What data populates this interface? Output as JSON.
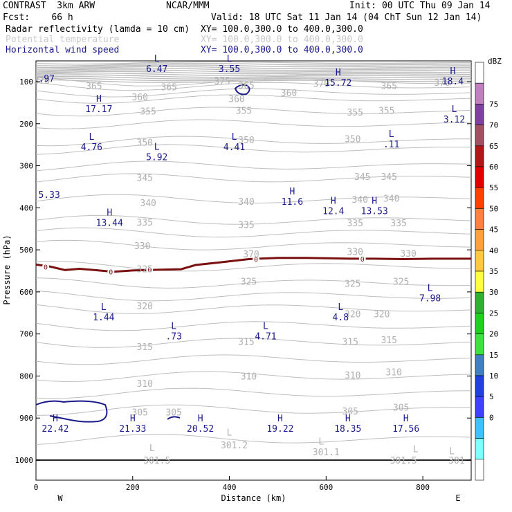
{
  "header": {
    "model": "CONTRAST  3km ARW",
    "org": "NCAR/MMM",
    "init": "Init: 00 UTC Thu 09 Jan 14",
    "fcst": "Fcst:    66 h",
    "valid": "Valid: 18 UTC Sat 11 Jan 14 (04 ChT Sun 12 Jan 14)",
    "field1": "Radar reflectivity (lamda = 10 cm)",
    "field1_xy": "XY= 100.0,300.0 to 400.0,300.0",
    "field2": "Potential temperature",
    "field2_xy": "XY= 100.0,300.0 to 400.0,300.0",
    "field3": "Horizontal wind speed",
    "field3_xy": "XY= 100.0,300.0 to 400.0,300.0"
  },
  "chart_data": {
    "type": "cross-section",
    "xlabel": "Distance (km)",
    "ylabel": "Pressure (hPa)",
    "xlim": [
      0,
      900
    ],
    "ylim": [
      1045,
      50
    ],
    "x_ticks": [
      0,
      200,
      400,
      600,
      800
    ],
    "y_ticks": [
      100,
      200,
      300,
      400,
      500,
      600,
      700,
      800,
      900,
      1000
    ],
    "west_label": "W",
    "east_label": "E",
    "colorbar": {
      "unit": "dBZ",
      "levels": [
        "75",
        "70",
        "65",
        "60",
        "55",
        "50",
        "45",
        "40",
        "35",
        "30",
        "25",
        "20",
        "15",
        "10",
        "5",
        "0"
      ],
      "colors": [
        "#ffffff",
        "#c080c0",
        "#8040a0",
        "#a05060",
        "#b01818",
        "#e00000",
        "#ff4000",
        "#ff8040",
        "#ffa040",
        "#ffc840",
        "#ffff40",
        "#30b030",
        "#20d020",
        "#40e040",
        "#4080c0",
        "#2040e0",
        "#4040ff",
        "#40c0ff",
        "#80ffff",
        "#ffffff"
      ]
    },
    "theta_labels": [
      {
        "v": "370",
        "x": 12,
        "p": 97
      },
      {
        "v": "365",
        "x": 120,
        "p": 110
      },
      {
        "v": "365",
        "x": 275,
        "p": 112
      },
      {
        "v": "375",
        "x": 385,
        "p": 98
      },
      {
        "v": "365",
        "x": 435,
        "p": 108
      },
      {
        "v": "370",
        "x": 590,
        "p": 104
      },
      {
        "v": "365",
        "x": 730,
        "p": 110
      },
      {
        "v": "370",
        "x": 840,
        "p": 102
      },
      {
        "v": "360",
        "x": 215,
        "p": 136
      },
      {
        "v": "360",
        "x": 415,
        "p": 140
      },
      {
        "v": "360",
        "x": 523,
        "p": 126
      },
      {
        "v": "355",
        "x": 232,
        "p": 170
      },
      {
        "v": "355",
        "x": 430,
        "p": 168
      },
      {
        "v": "355",
        "x": 660,
        "p": 172
      },
      {
        "v": "355",
        "x": 725,
        "p": 168
      },
      {
        "v": "350",
        "x": 225,
        "p": 244
      },
      {
        "v": "350",
        "x": 435,
        "p": 238
      },
      {
        "v": "350",
        "x": 655,
        "p": 236
      },
      {
        "v": "345",
        "x": 225,
        "p": 328
      },
      {
        "v": "345",
        "x": 675,
        "p": 325
      },
      {
        "v": "345",
        "x": 730,
        "p": 325
      },
      {
        "v": "340",
        "x": 232,
        "p": 388
      },
      {
        "v": "340",
        "x": 435,
        "p": 385
      },
      {
        "v": "340",
        "x": 670,
        "p": 380
      },
      {
        "v": "340",
        "x": 735,
        "p": 377
      },
      {
        "v": "335",
        "x": 225,
        "p": 434
      },
      {
        "v": "335",
        "x": 435,
        "p": 440
      },
      {
        "v": "335",
        "x": 660,
        "p": 436
      },
      {
        "v": "335",
        "x": 750,
        "p": 436
      },
      {
        "v": "330",
        "x": 220,
        "p": 490
      },
      {
        "v": "330",
        "x": 660,
        "p": 504
      },
      {
        "v": "330",
        "x": 770,
        "p": 508
      },
      {
        "v": "370",
        "x": 445,
        "p": 510
      },
      {
        "v": "325",
        "x": 225,
        "p": 545
      },
      {
        "v": "325",
        "x": 440,
        "p": 575
      },
      {
        "v": "325",
        "x": 655,
        "p": 580
      },
      {
        "v": "325",
        "x": 755,
        "p": 575
      },
      {
        "v": "320",
        "x": 225,
        "p": 633
      },
      {
        "v": "320",
        "x": 655,
        "p": 652
      },
      {
        "v": "320",
        "x": 715,
        "p": 652
      },
      {
        "v": "315",
        "x": 225,
        "p": 730
      },
      {
        "v": "315",
        "x": 435,
        "p": 718
      },
      {
        "v": "315",
        "x": 650,
        "p": 718
      },
      {
        "v": "315",
        "x": 730,
        "p": 714
      },
      {
        "v": "310",
        "x": 225,
        "p": 817
      },
      {
        "v": "310",
        "x": 440,
        "p": 800
      },
      {
        "v": "310",
        "x": 655,
        "p": 798
      },
      {
        "v": "310",
        "x": 740,
        "p": 790
      },
      {
        "v": "305",
        "x": 215,
        "p": 886
      },
      {
        "v": "305",
        "x": 285,
        "p": 886
      },
      {
        "v": "305",
        "x": 650,
        "p": 883
      },
      {
        "v": "305",
        "x": 755,
        "p": 874
      },
      {
        "v": "301.2",
        "x": 410,
        "p": 964
      },
      {
        "v": "301.5",
        "x": 250,
        "p": 1000
      },
      {
        "v": "301.1",
        "x": 600,
        "p": 980
      },
      {
        "v": "301.5",
        "x": 760,
        "p": 1000
      },
      {
        "v": "301",
        "x": 870,
        "p": 1000
      }
    ],
    "theta_lows": [
      {
        "x": 590,
        "p": 955
      },
      {
        "x": 400,
        "p": 933
      },
      {
        "x": 240,
        "p": 970
      },
      {
        "x": 785,
        "p": 973
      },
      {
        "x": 860,
        "p": 978
      }
    ],
    "wind_extrema": [
      {
        "type": "L",
        "value": "6.47",
        "x": 250,
        "p": 52
      },
      {
        "type": "L",
        "value": "3.55",
        "x": 400,
        "p": 52
      },
      {
        "type": "H",
        "value": "15.72",
        "x": 625,
        "p": 85
      },
      {
        "type": "H",
        "value": "18.4",
        "x": 862,
        "p": 82
      },
      {
        "type": "H",
        "value": "17.17",
        "x": 130,
        "p": 148
      },
      {
        "type": "L",
        "value": "3.12",
        "x": 865,
        "p": 172
      },
      {
        "type": "L",
        "value": "4.76",
        "x": 115,
        "p": 238
      },
      {
        "type": "L",
        "value": "5.92",
        "x": 250,
        "p": 262
      },
      {
        "type": "L",
        "value": "4.41",
        "x": 410,
        "p": 238
      },
      {
        "type": "L",
        "value": ".11",
        "x": 735,
        "p": 232
      },
      {
        "type": "H",
        "value": "11.6",
        "x": 530,
        "p": 368
      },
      {
        "type": "H",
        "value": "12.4",
        "x": 615,
        "p": 390
      },
      {
        "type": "H",
        "value": "13.53",
        "x": 700,
        "p": 390
      },
      {
        "type": "H",
        "value": "13.44",
        "x": 152,
        "p": 418
      },
      {
        "type": "L",
        "value": "7.98",
        "x": 815,
        "p": 598
      },
      {
        "type": "L",
        "value": "1.44",
        "x": 140,
        "p": 643
      },
      {
        "type": "L",
        "value": "4.8",
        "x": 630,
        "p": 643
      },
      {
        "type": "L",
        "value": ".73",
        "x": 285,
        "p": 688
      },
      {
        "type": "L",
        "value": "4.71",
        "x": 475,
        "p": 688
      },
      {
        "type": "H",
        "value": "22.42",
        "x": 40,
        "p": 908
      },
      {
        "type": "H",
        "value": "21.33",
        "x": 200,
        "p": 908
      },
      {
        "type": "H",
        "value": "20.52",
        "x": 340,
        "p": 908
      },
      {
        "type": "H",
        "value": "19.22",
        "x": 505,
        "p": 908
      },
      {
        "type": "H",
        "value": "18.35",
        "x": 645,
        "p": 908
      },
      {
        "type": "H",
        "value": "17.56",
        "x": 765,
        "p": 908
      }
    ],
    "edge_values": [
      {
        "value": ".97",
        "x": 5,
        "p": 92
      },
      {
        "value": "5.33",
        "x": 5,
        "p": 368
      }
    ],
    "zero_dbz_line": {
      "label": "0",
      "points": [
        [
          0,
          535
        ],
        [
          30,
          540
        ],
        [
          60,
          548
        ],
        [
          90,
          545
        ],
        [
          120,
          548
        ],
        [
          160,
          552
        ],
        [
          200,
          549
        ],
        [
          260,
          547
        ],
        [
          300,
          546
        ],
        [
          330,
          536
        ],
        [
          380,
          530
        ],
        [
          440,
          522
        ],
        [
          500,
          519
        ],
        [
          560,
          519
        ],
        [
          600,
          520
        ],
        [
          650,
          521
        ],
        [
          700,
          521
        ],
        [
          760,
          522
        ],
        [
          820,
          521
        ],
        [
          900,
          521
        ]
      ],
      "label_x": [
        20,
        155,
        235,
        455,
        675
      ]
    }
  }
}
